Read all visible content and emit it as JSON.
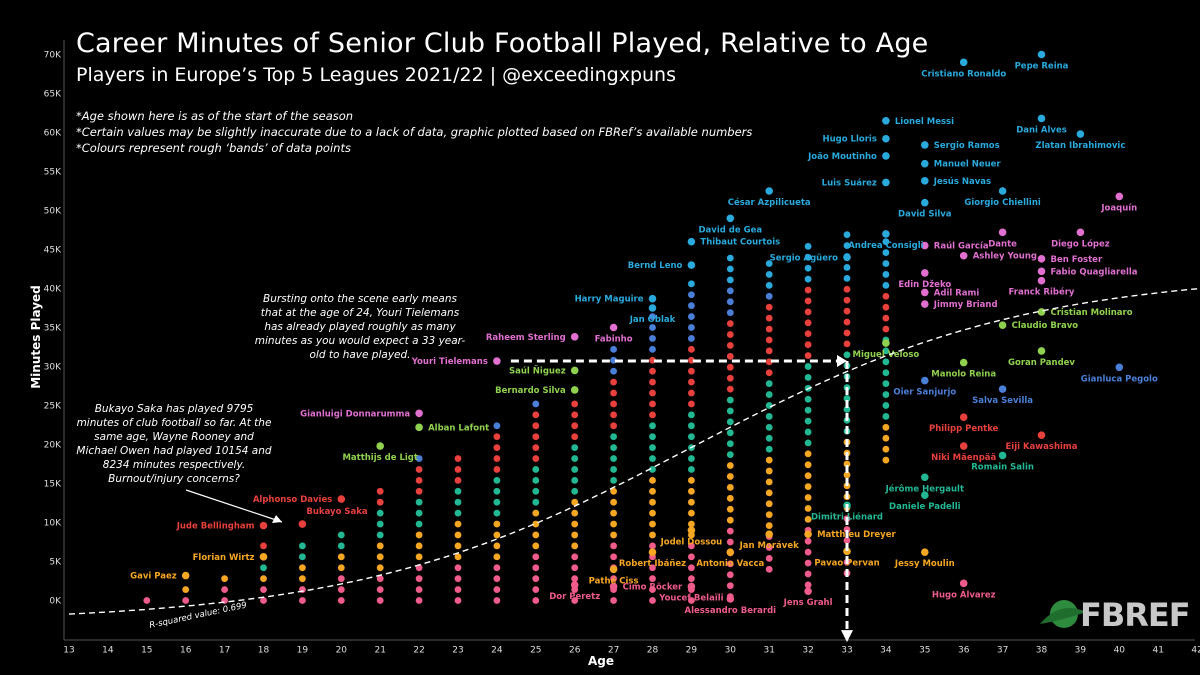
{
  "title": "Career Minutes of Senior Club Football Played, Relative to Age",
  "subtitle": "Players in Europe’s Top 5 Leagues 2021/22 | @exceedingxpuns",
  "notes": [
    "*Age shown here is as of the start of the season",
    "*Certain values may be slightly inaccurate due to a lack of data, graphic plotted based on FBRef’s available numbers",
    "*Colours represent rough ‘bands’ of data points"
  ],
  "annotations": {
    "tielemans": "Bursting onto the scene early means that at the age of 24, Youri Tielemans has already played roughly as many minutes as you would expect a 33 year-old to have played.",
    "saka": "Bukayo Saka has played 9795 minutes of club football so far. At the same age, Wayne Rooney and Michael Owen had played 10154 and 8234 minutes respectively. Burnout/injury concerns?",
    "r_squared": "R-squared value: 0.699"
  },
  "logo_text": "FBREF",
  "colors": {
    "background": "#000000",
    "cyan": "#29a9dc",
    "pink": "#e06fcf",
    "lightgreen": "#8fd14f",
    "blue": "#4a7fd8",
    "red": "#e8403c",
    "teal": "#22b894",
    "orange": "#f5a623",
    "rose": "#ef5b8a",
    "trend": "#ffffff"
  },
  "chart_data": {
    "type": "scatter",
    "title": "Career Minutes of Senior Club Football Played, Relative to Age",
    "xlabel": "Age",
    "ylabel": "Minutes Played",
    "xlim": [
      13,
      42
    ],
    "ylim": [
      -3000,
      72000
    ],
    "x_ticks": [
      13,
      14,
      15,
      16,
      17,
      18,
      19,
      20,
      21,
      22,
      23,
      24,
      25,
      26,
      27,
      28,
      29,
      30,
      31,
      32,
      33,
      34,
      35,
      36,
      37,
      38,
      39,
      40,
      41,
      42
    ],
    "y_ticks": [
      {
        "v": 0,
        "label": "0K"
      },
      {
        "v": 5000,
        "label": "5K"
      },
      {
        "v": 10000,
        "label": "10K"
      },
      {
        "v": 15000,
        "label": "15K"
      },
      {
        "v": 20000,
        "label": "20K"
      },
      {
        "v": 25000,
        "label": "25K"
      },
      {
        "v": 30000,
        "label": "30K"
      },
      {
        "v": 35000,
        "label": "35K"
      },
      {
        "v": 40000,
        "label": "40K"
      },
      {
        "v": 45000,
        "label": "45K"
      },
      {
        "v": 50000,
        "label": "50K"
      },
      {
        "v": 55000,
        "label": "55K"
      },
      {
        "v": 60000,
        "label": "60K"
      },
      {
        "v": 65000,
        "label": "65K"
      },
      {
        "v": 70000,
        "label": "70K"
      }
    ],
    "grid": false,
    "trend_line": {
      "type": "polynomial",
      "label": "R-squared value: 0.699"
    },
    "labeled_points": [
      {
        "name": "Cristiano Ronaldo",
        "x": 36,
        "y": 69000,
        "c": "cyan",
        "la": "below"
      },
      {
        "name": "Pepe Reina",
        "x": 38,
        "y": 70000,
        "c": "cyan",
        "la": "below"
      },
      {
        "name": "Lionel Messi",
        "x": 34,
        "y": 61500,
        "c": "cyan",
        "la": "right"
      },
      {
        "name": "Dani Alves",
        "x": 38,
        "y": 61800,
        "c": "cyan",
        "la": "below"
      },
      {
        "name": "Zlatan Ibrahimovic",
        "x": 39,
        "y": 59800,
        "c": "cyan",
        "la": "below"
      },
      {
        "name": "Hugo Lloris",
        "x": 34,
        "y": 59200,
        "c": "cyan",
        "la": "left"
      },
      {
        "name": "Sergio Ramos",
        "x": 35,
        "y": 58400,
        "c": "cyan",
        "la": "right"
      },
      {
        "name": "João Moutinho",
        "x": 34,
        "y": 57000,
        "c": "cyan",
        "la": "left"
      },
      {
        "name": "Manuel Neuer",
        "x": 35,
        "y": 56000,
        "c": "cyan",
        "la": "right"
      },
      {
        "name": "Luis Suárez",
        "x": 34,
        "y": 53600,
        "c": "cyan",
        "la": "left"
      },
      {
        "name": "Jesús Navas",
        "x": 35,
        "y": 53800,
        "c": "cyan",
        "la": "right"
      },
      {
        "name": "César Azpilicueta",
        "x": 31,
        "y": 52500,
        "c": "cyan",
        "la": "below"
      },
      {
        "name": "Giorgio Chiellini",
        "x": 37,
        "y": 52500,
        "c": "cyan",
        "la": "below"
      },
      {
        "name": "David Silva",
        "x": 35,
        "y": 51000,
        "c": "cyan",
        "la": "below"
      },
      {
        "name": "Joaquín",
        "x": 40,
        "y": 51800,
        "c": "pink",
        "la": "below"
      },
      {
        "name": "David de Gea",
        "x": 30,
        "y": 49000,
        "c": "cyan",
        "la": "below"
      },
      {
        "name": "Thibaut Courtois",
        "x": 29,
        "y": 46000,
        "c": "cyan",
        "la": "right"
      },
      {
        "name": "Andrea Consigli",
        "x": 34,
        "y": 47000,
        "c": "cyan",
        "la": "below"
      },
      {
        "name": "Raúl García",
        "x": 35,
        "y": 45500,
        "c": "pink",
        "la": "right"
      },
      {
        "name": "Dante",
        "x": 37,
        "y": 47200,
        "c": "pink",
        "la": "below"
      },
      {
        "name": "Diego López",
        "x": 39,
        "y": 47200,
        "c": "pink",
        "la": "below"
      },
      {
        "name": "Sergio Agüero",
        "x": 33,
        "y": 44000,
        "c": "cyan",
        "la": "left"
      },
      {
        "name": "Ashley Young",
        "x": 36,
        "y": 44200,
        "c": "pink",
        "la": "right"
      },
      {
        "name": "Ben Foster",
        "x": 38,
        "y": 43800,
        "c": "pink",
        "la": "right"
      },
      {
        "name": "Bernd Leno",
        "x": 29,
        "y": 43000,
        "c": "cyan",
        "la": "left"
      },
      {
        "name": "Edin Džeko",
        "x": 35,
        "y": 42000,
        "c": "pink",
        "la": "below"
      },
      {
        "name": "Fabio Quagliarella",
        "x": 38,
        "y": 42200,
        "c": "pink",
        "la": "right"
      },
      {
        "name": "Adil Rami",
        "x": 35,
        "y": 39500,
        "c": "pink",
        "la": "right"
      },
      {
        "name": "Franck Ribéry",
        "x": 38,
        "y": 41000,
        "c": "pink",
        "la": "below"
      },
      {
        "name": "Harry Maguire",
        "x": 28,
        "y": 38700,
        "c": "cyan",
        "la": "left"
      },
      {
        "name": "Jimmy Briand",
        "x": 35,
        "y": 38000,
        "c": "pink",
        "la": "right"
      },
      {
        "name": "Jan Oblak",
        "x": 28,
        "y": 37500,
        "c": "cyan",
        "la": "below"
      },
      {
        "name": "Cristian Molinaro",
        "x": 38,
        "y": 37000,
        "c": "lightgreen",
        "la": "right"
      },
      {
        "name": "Raheem Sterling",
        "x": 26,
        "y": 33800,
        "c": "pink",
        "la": "left"
      },
      {
        "name": "Fabinho",
        "x": 27,
        "y": 35000,
        "c": "pink",
        "la": "below"
      },
      {
        "name": "Claudio Bravo",
        "x": 37,
        "y": 35300,
        "c": "lightgreen",
        "la": "right"
      },
      {
        "name": "Miguel Veloso",
        "x": 34,
        "y": 33000,
        "c": "lightgreen",
        "la": "below"
      },
      {
        "name": "Youri Tielemans",
        "x": 24,
        "y": 30700,
        "c": "pink",
        "la": "left"
      },
      {
        "name": "Goran Pandev",
        "x": 38,
        "y": 32000,
        "c": "lightgreen",
        "la": "below"
      },
      {
        "name": "Saúl Ñiguez",
        "x": 26,
        "y": 29500,
        "c": "lightgreen",
        "la": "left"
      },
      {
        "name": "Manolo Reina",
        "x": 36,
        "y": 30500,
        "c": "lightgreen",
        "la": "below"
      },
      {
        "name": "Gianluca Pegolo",
        "x": 40,
        "y": 29900,
        "c": "blue",
        "la": "below"
      },
      {
        "name": "Bernardo Silva",
        "x": 26,
        "y": 27000,
        "c": "lightgreen",
        "la": "left"
      },
      {
        "name": "Oier Sanjurjo",
        "x": 35,
        "y": 28200,
        "c": "blue",
        "la": "below"
      },
      {
        "name": "Salva Sevilla",
        "x": 37,
        "y": 27100,
        "c": "blue",
        "la": "below"
      },
      {
        "name": "Gianluigi Donnarumma",
        "x": 22,
        "y": 24000,
        "c": "pink",
        "la": "left"
      },
      {
        "name": "Alban Lafont",
        "x": 22,
        "y": 22200,
        "c": "lightgreen",
        "la": "right"
      },
      {
        "name": "Philipp Pentke",
        "x": 36,
        "y": 23500,
        "c": "red",
        "la": "below"
      },
      {
        "name": "Matthijs de Ligt",
        "x": 21,
        "y": 19800,
        "c": "lightgreen",
        "la": "below"
      },
      {
        "name": "Eiji Kawashima",
        "x": 38,
        "y": 21200,
        "c": "red",
        "la": "below"
      },
      {
        "name": "Niki Mäenpää",
        "x": 36,
        "y": 19800,
        "c": "red",
        "la": "below"
      },
      {
        "name": "Romain Salin",
        "x": 37,
        "y": 18600,
        "c": "teal",
        "la": "below"
      },
      {
        "name": "Jérôme Hergault",
        "x": 35,
        "y": 15800,
        "c": "teal",
        "la": "below"
      },
      {
        "name": "Alphonso Davies",
        "x": 20,
        "y": 13000,
        "c": "red",
        "la": "left"
      },
      {
        "name": "Daniele Padelli",
        "x": 35,
        "y": 13500,
        "c": "teal",
        "la": "below"
      },
      {
        "name": "Bukayo Saka",
        "x": 19,
        "y": 9800,
        "c": "red",
        "la": "above-right"
      },
      {
        "name": "Dimitri Liénard",
        "x": 33,
        "y": 12200,
        "c": "teal",
        "la": "below"
      },
      {
        "name": "Jude Bellingham",
        "x": 18,
        "y": 9600,
        "c": "red",
        "la": "left"
      },
      {
        "name": "Jodel Dossou",
        "x": 29,
        "y": 9000,
        "c": "orange",
        "la": "below"
      },
      {
        "name": "Jan Morávek",
        "x": 31,
        "y": 8500,
        "c": "orange",
        "la": "below"
      },
      {
        "name": "Matthieu Dreyer",
        "x": 32,
        "y": 8500,
        "c": "orange",
        "la": "right"
      },
      {
        "name": "Florian Wirtz",
        "x": 18,
        "y": 5600,
        "c": "orange",
        "la": "left"
      },
      {
        "name": "Robert Ibáñez",
        "x": 28,
        "y": 6200,
        "c": "orange",
        "la": "below"
      },
      {
        "name": "Antonio Vacca",
        "x": 30,
        "y": 6200,
        "c": "orange",
        "la": "below"
      },
      {
        "name": "Pavao Pervan",
        "x": 33,
        "y": 6300,
        "c": "orange",
        "la": "below"
      },
      {
        "name": "Jessy Moulin",
        "x": 35,
        "y": 6200,
        "c": "orange",
        "la": "below"
      },
      {
        "name": "Gavi Paez",
        "x": 16,
        "y": 3200,
        "c": "orange",
        "la": "left"
      },
      {
        "name": "Pathé Ciss",
        "x": 27,
        "y": 4000,
        "c": "orange",
        "la": "below"
      },
      {
        "name": "Cimo Röcker",
        "x": 27,
        "y": 1800,
        "c": "rose",
        "la": "right"
      },
      {
        "name": "Dor Peretz",
        "x": 26,
        "y": 2000,
        "c": "rose",
        "la": "below"
      },
      {
        "name": "Youcef Belaïli",
        "x": 29,
        "y": 1800,
        "c": "rose",
        "la": "below"
      },
      {
        "name": "Hugo Álvarez",
        "x": 36,
        "y": 2200,
        "c": "rose",
        "la": "below"
      },
      {
        "name": "Jens Grahl",
        "x": 32,
        "y": 1200,
        "c": "rose",
        "la": "below"
      },
      {
        "name": "Alessandro Berardi",
        "x": 30,
        "y": 200,
        "c": "rose",
        "la": "below"
      }
    ],
    "age_columns": [
      {
        "age": 15,
        "min": 0,
        "max": 0
      },
      {
        "age": 16,
        "min": 0,
        "max": 1500
      },
      {
        "age": 17,
        "min": 0,
        "max": 3500
      },
      {
        "age": 18,
        "min": 0,
        "max": 7500
      },
      {
        "age": 19,
        "min": 0,
        "max": 7000
      },
      {
        "age": 20,
        "min": 0,
        "max": 9500
      },
      {
        "age": 21,
        "min": 0,
        "max": 14500
      },
      {
        "age": 22,
        "min": 0,
        "max": 18500
      },
      {
        "age": 23,
        "min": 0,
        "max": 19500
      },
      {
        "age": 24,
        "min": 0,
        "max": 23000
      },
      {
        "age": 25,
        "min": 0,
        "max": 26000
      },
      {
        "age": 26,
        "min": 0,
        "max": 26000
      },
      {
        "age": 27,
        "min": 0,
        "max": 33000
      },
      {
        "age": 28,
        "min": 0,
        "max": 37000
      },
      {
        "age": 29,
        "min": 0,
        "max": 41000
      },
      {
        "age": 30,
        "min": 500,
        "max": 44000
      },
      {
        "age": 31,
        "min": 4000,
        "max": 44000
      },
      {
        "age": 32,
        "min": 2000,
        "max": 46000
      },
      {
        "age": 33,
        "min": 3500,
        "max": 48000
      },
      {
        "age": 34,
        "min": 18000,
        "max": 46000
      }
    ],
    "highlight_arrow": {
      "from_x": 24,
      "to_x": 33,
      "y": 30700,
      "down_to_y": -2000
    }
  }
}
